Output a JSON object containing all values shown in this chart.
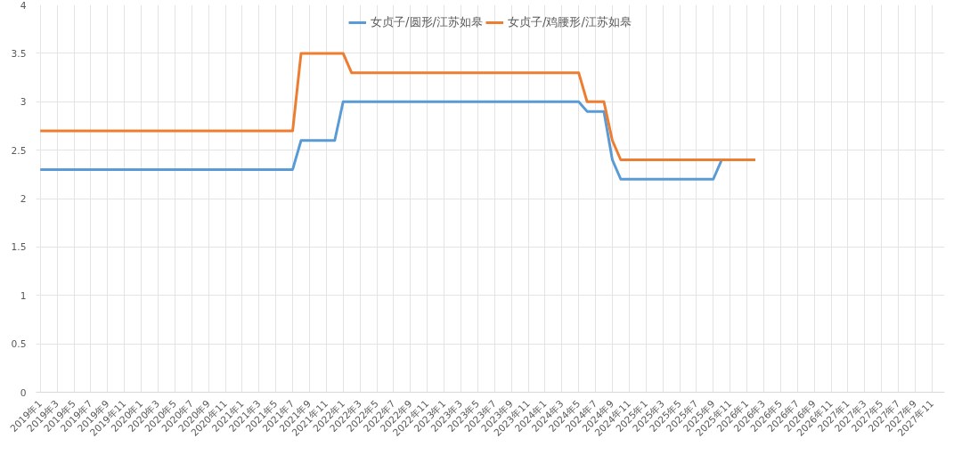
{
  "chart_data": {
    "type": "line",
    "categories": [
      "2019年1",
      null,
      "2019年3",
      null,
      "2019年5",
      null,
      "2019年7",
      null,
      "2019年9",
      null,
      "2019年11",
      null,
      "2020年1",
      null,
      "2020年3",
      null,
      "2020年5",
      null,
      "2020年7",
      null,
      "2020年9",
      null,
      "2020年11",
      null,
      "2021年1",
      null,
      "2021年3",
      null,
      "2021年5",
      null,
      "2021年7",
      null,
      "2021年9",
      null,
      "2021年11",
      null,
      "2022年1",
      null,
      "2022年3",
      null,
      "2022年5",
      null,
      "2022年7",
      null,
      "2022年9",
      null,
      "2022年11",
      null,
      "2023年1",
      null,
      "2023年3",
      null,
      "2023年5",
      null,
      "2023年7",
      null,
      "2023年9",
      null,
      "2023年11",
      null,
      "2024年1",
      null,
      "2024年3",
      null,
      "2024年5",
      null,
      "2024年7",
      null,
      "2024年9",
      null,
      "2024年11",
      null,
      "2025年1",
      null,
      "2025年3",
      null,
      "2025年5",
      null,
      "2025年7",
      null,
      "2025年9",
      null,
      "2025年11",
      null,
      "2026年1",
      null,
      "2026年3",
      null,
      "2026年5",
      null,
      "2026年7",
      null,
      "2026年9",
      null,
      "2026年11",
      null,
      "2027年1",
      null,
      "2027年3",
      null,
      "2027年5",
      null,
      "2027年7",
      null,
      "2027年9",
      null,
      "2027年11",
      null
    ],
    "series": [
      {
        "name": "女贞子/圆形/江苏如皋",
        "color": "#5b9bd5",
        "values": [
          2.3,
          2.3,
          2.3,
          2.3,
          2.3,
          2.3,
          2.3,
          2.3,
          2.3,
          2.3,
          2.3,
          2.3,
          2.3,
          2.3,
          2.3,
          2.3,
          2.3,
          2.3,
          2.3,
          2.3,
          2.3,
          2.3,
          2.3,
          2.3,
          2.3,
          2.3,
          2.3,
          2.3,
          2.3,
          2.3,
          2.3,
          2.6,
          2.6,
          2.6,
          2.6,
          2.6,
          3,
          3,
          3,
          3,
          3,
          3,
          3,
          3,
          3,
          3,
          3,
          3,
          3,
          3,
          3,
          3,
          3,
          3,
          3,
          3,
          3,
          3,
          3,
          3,
          3,
          3,
          3,
          3,
          3,
          2.9,
          2.9,
          2.9,
          2.4,
          2.2,
          2.2,
          2.2,
          2.2,
          2.2,
          2.2,
          2.2,
          2.2,
          2.2,
          2.2,
          2.2,
          2.2,
          2.4,
          null,
          null,
          null,
          null,
          null,
          null,
          null,
          null,
          null,
          null,
          null,
          null,
          null,
          null,
          null,
          null,
          null,
          null,
          null,
          null,
          null,
          null,
          null,
          null,
          null,
          null
        ]
      },
      {
        "name": "女贞子/鸡腰形/江苏如皋",
        "color": "#ed7d31",
        "values": [
          2.7,
          2.7,
          2.7,
          2.7,
          2.7,
          2.7,
          2.7,
          2.7,
          2.7,
          2.7,
          2.7,
          2.7,
          2.7,
          2.7,
          2.7,
          2.7,
          2.7,
          2.7,
          2.7,
          2.7,
          2.7,
          2.7,
          2.7,
          2.7,
          2.7,
          2.7,
          2.7,
          2.7,
          2.7,
          2.7,
          2.7,
          3.5,
          3.5,
          3.5,
          3.5,
          3.5,
          3.5,
          3.3,
          3.3,
          3.3,
          3.3,
          3.3,
          3.3,
          3.3,
          3.3,
          3.3,
          3.3,
          3.3,
          3.3,
          3.3,
          3.3,
          3.3,
          3.3,
          3.3,
          3.3,
          3.3,
          3.3,
          3.3,
          3.3,
          3.3,
          3.3,
          3.3,
          3.3,
          3.3,
          3.3,
          3,
          3,
          3,
          2.6,
          2.4,
          2.4,
          2.4,
          2.4,
          2.4,
          2.4,
          2.4,
          2.4,
          2.4,
          2.4,
          2.4,
          2.4,
          2.4,
          2.4,
          2.4,
          2.4,
          2.4,
          null,
          null,
          null,
          null,
          null,
          null,
          null,
          null,
          null,
          null,
          null,
          null,
          null,
          null,
          null,
          null,
          null,
          null,
          null,
          null,
          null,
          null
        ]
      }
    ],
    "ylim": [
      0,
      4
    ],
    "yticks": [
      0,
      0.5,
      1,
      1.5,
      2,
      2.5,
      3,
      3.5,
      4
    ],
    "grid": true,
    "legend": "top",
    "marker": "none",
    "line_style": "solid"
  }
}
